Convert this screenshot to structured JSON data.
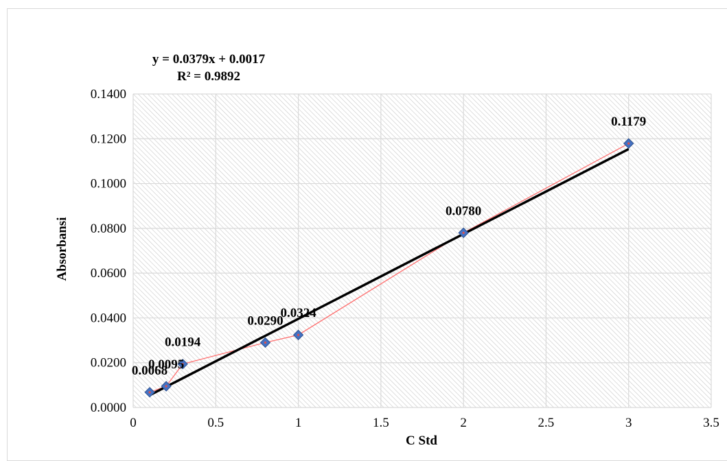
{
  "chart_data": {
    "type": "scatter",
    "title": "",
    "xlabel": "C Std",
    "ylabel": "Absorbansi",
    "xlim": [
      0,
      3.5
    ],
    "ylim": [
      0,
      0.14
    ],
    "x_ticks": [
      "0",
      "0.5",
      "1",
      "1.5",
      "2",
      "2.5",
      "3",
      "3.5"
    ],
    "y_ticks": [
      "0.0000",
      "0.0200",
      "0.0400",
      "0.0600",
      "0.0800",
      "0.1000",
      "0.1200",
      "0.1400"
    ],
    "grid": true,
    "legend": "none",
    "series": [
      {
        "x": [
          0.1,
          0.2,
          0.3,
          0.8,
          1,
          2,
          3
        ],
        "y": [
          0.0068,
          0.0095,
          0.0194,
          0.029,
          0.0324,
          0.078,
          0.1179
        ],
        "labels": [
          "0.0068",
          "0.0095",
          "0.0194",
          "0.0290",
          "0.0324",
          "0.0780",
          "0.1179"
        ],
        "marker": "diamond",
        "marker_color": "#4472c4",
        "line_color": "#ff6f6f"
      }
    ],
    "trendline": {
      "type": "linear",
      "slope": 0.0379,
      "intercept": 0.0017,
      "x_range": [
        0.1,
        3
      ],
      "color": "#000000",
      "equation": "y = 0.0379x + 0.0017",
      "r_squared": "R² = 0.9892"
    }
  }
}
